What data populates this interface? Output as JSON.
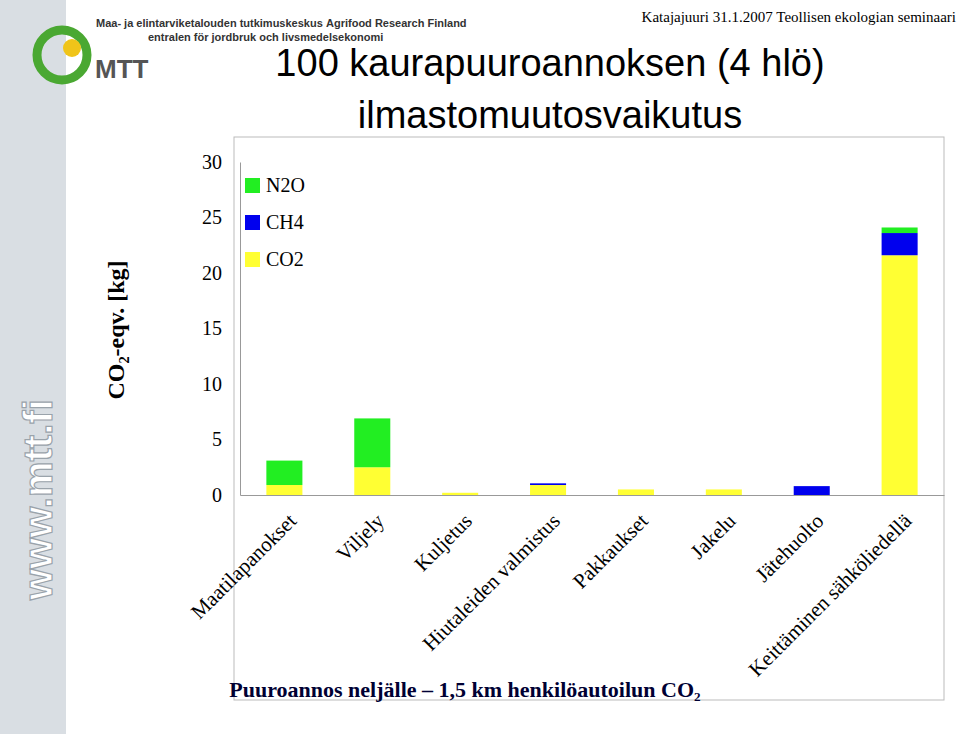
{
  "chart_data": {
    "type": "bar",
    "title": "100 kaurapuuroannoksen (4 hlö) ilmastomuutosvaikutus",
    "y_label": "CO₂-eqv. [kg]",
    "categories": [
      "Maatilapanokset",
      "Viljely",
      "Kuljetus",
      "Hiutaleiden valmistus",
      "Pakkaukset",
      "Jakelu",
      "Jätehuolto",
      "Keittäminen sähköliedellä"
    ],
    "series": [
      {
        "name": "N2O",
        "color": "#22ee22",
        "values": [
          2.2,
          4.4,
          0,
          0,
          0,
          0,
          0,
          0.5
        ]
      },
      {
        "name": "CH4",
        "color": "#0000ee",
        "values": [
          0,
          0,
          0,
          0.15,
          0,
          0,
          0.8,
          2.0
        ]
      },
      {
        "name": "CO2",
        "color": "#ffff33",
        "values": [
          0.9,
          2.5,
          0.2,
          0.9,
          0.5,
          0.5,
          0,
          21.6
        ]
      }
    ],
    "stacked": true,
    "ylim": [
      0,
      30
    ],
    "yticks": [
      0,
      5,
      10,
      15,
      20,
      25,
      30
    ],
    "grid": false,
    "legend": "upper left",
    "annotations": [
      "Katajajuuri 31.1.2007 Teollisen ekologian seminaari",
      "Maa- ja elintarviketalouden tutkimuskeskus",
      "Agrifood Research Finland",
      "entralen för jordbruk och livsmedelsekonomi",
      "MTT",
      "www.mtt.fi",
      "Puuroannos neljälle – 1,5 km henkilöautoilun CO₂"
    ]
  }
}
